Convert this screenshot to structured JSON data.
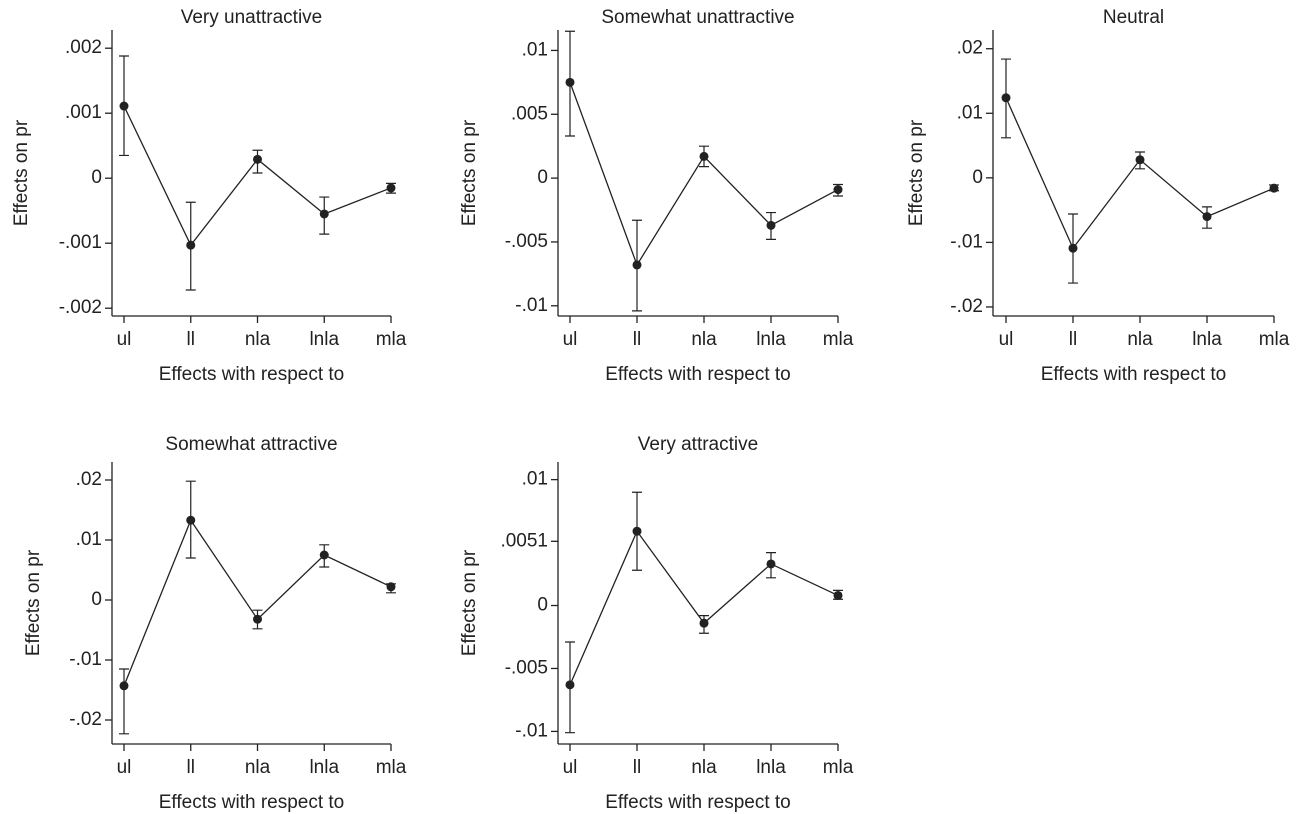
{
  "chart_data": [
    {
      "type": "line",
      "title": "Very unattractive",
      "ylabel": "Effects on pr",
      "xlabel": "Effects with respect to",
      "categories": [
        "ul",
        "ll",
        "nla",
        "lnla",
        "mla"
      ],
      "values": [
        0.00111,
        -0.00103,
        0.00029,
        -0.00055,
        -0.00015
      ],
      "lower": [
        0.00035,
        -0.00172,
        8e-05,
        -0.00086,
        -0.00023
      ],
      "upper": [
        0.00188,
        -0.00037,
        0.00043,
        -0.00029,
        -8e-05
      ],
      "color": "#222222",
      "ylim": [
        -0.00212,
        0.00228
      ],
      "yticks": [
        {
          "value": 0.002,
          "label": ".002"
        },
        {
          "value": 0.001,
          "label": ".001"
        },
        0,
        {
          "value": -0.001,
          "label": "-.001"
        },
        {
          "value": -0.002,
          "label": "-.002"
        }
      ]
    },
    {
      "type": "line",
      "title": "Somewhat unattractive",
      "ylabel": "Effects on pr",
      "xlabel": "Effects with respect to",
      "categories": [
        "ul",
        "ll",
        "nla",
        "lnla",
        "mla"
      ],
      "values": [
        0.0075,
        -0.0068,
        0.0017,
        -0.0037,
        -0.0009
      ],
      "lower": [
        0.0033,
        -0.0104,
        0.0009,
        -0.0048,
        -0.0014
      ],
      "upper": [
        0.0115,
        -0.0033,
        0.0025,
        -0.0027,
        -0.0005
      ],
      "color": "#222222",
      "ylim": [
        -0.0108,
        0.0116
      ],
      "yticks": [
        {
          "value": 0.01,
          "label": ".01"
        },
        {
          "value": 0.005,
          "label": ".005"
        },
        0,
        {
          "value": -0.005,
          "label": "-.005"
        },
        {
          "value": -0.01,
          "label": "-.01"
        }
      ]
    },
    {
      "type": "line",
      "title": "Neutral",
      "ylabel": "Effects on pr",
      "xlabel": "Effects with respect to",
      "categories": [
        "ul",
        "ll",
        "nla",
        "lnla",
        "mla"
      ],
      "values": [
        0.0124,
        -0.0109,
        0.0028,
        -0.006,
        -0.0016
      ],
      "lower": [
        0.0062,
        -0.0163,
        0.0014,
        -0.0078,
        -0.002
      ],
      "upper": [
        0.0184,
        -0.0056,
        0.004,
        -0.0045,
        -0.0011
      ],
      "color": "#222222",
      "ylim": [
        -0.0214,
        0.0229
      ],
      "yticks": [
        {
          "value": 0.02,
          "label": ".02"
        },
        {
          "value": 0.01,
          "label": ".01"
        },
        0,
        {
          "value": -0.01,
          "label": "-.01"
        },
        {
          "value": -0.02,
          "label": "-.02"
        }
      ]
    },
    {
      "type": "line",
      "title": "Somewhat attractive",
      "ylabel": "Effects on pr",
      "xlabel": "Effects with respect to",
      "categories": [
        "ul",
        "ll",
        "nla",
        "lnla",
        "mla"
      ],
      "values": [
        -0.0143,
        0.0133,
        -0.0032,
        0.0075,
        0.0022
      ],
      "lower": [
        -0.0223,
        0.007,
        -0.0048,
        0.0055,
        0.0012
      ],
      "upper": [
        -0.0115,
        0.0198,
        -0.0017,
        0.0092,
        0.0027
      ],
      "color": "#222222",
      "ylim": [
        -0.024,
        0.023
      ],
      "yticks": [
        {
          "value": 0.02,
          "label": ".02"
        },
        {
          "value": 0.01,
          "label": ".01"
        },
        0,
        {
          "value": -0.01,
          "label": "-.01"
        },
        {
          "value": -0.02,
          "label": "-.02"
        }
      ]
    },
    {
      "type": "line",
      "title": "Very attractive",
      "ylabel": "Effects on pr",
      "xlabel": "Effects with respect to",
      "categories": [
        "ul",
        "ll",
        "nla",
        "lnla",
        "mla"
      ],
      "values": [
        -0.0063,
        0.0059,
        -0.0014,
        0.0033,
        0.0008
      ],
      "lower": [
        -0.0101,
        0.0028,
        -0.0022,
        0.0022,
        0.0005
      ],
      "upper": [
        -0.0029,
        0.009,
        -0.0008,
        0.0042,
        0.0012
      ],
      "color": "#222222",
      "ylim": [
        -0.011,
        0.0114
      ],
      "yticks": [
        {
          "value": 0.01,
          "label": ".01"
        },
        {
          "value": 0.0051,
          "label": ".0051"
        },
        0,
        {
          "value": -0.005,
          "label": "-.005"
        },
        {
          "value": -0.01,
          "label": "-.01"
        }
      ]
    }
  ]
}
